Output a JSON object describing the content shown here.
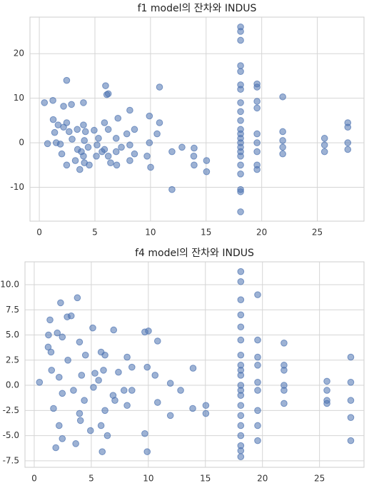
{
  "chart_data": [
    {
      "type": "scatter",
      "title": "f1 model의 잔차와 INDUS",
      "color": "#4c72b0",
      "grid": true,
      "xlim": [
        -0.84,
        29.2
      ],
      "xticks": [
        0,
        5,
        10,
        15,
        20,
        25
      ],
      "ylim": [
        -17.6,
        28.2
      ],
      "yticks": [
        -10,
        0,
        10,
        20
      ],
      "x": [
        0.46,
        0.74,
        1.22,
        1.25,
        1.38,
        1.52,
        1.69,
        1.89,
        2.02,
        2.18,
        2.18,
        2.46,
        2.46,
        2.46,
        2.68,
        2.89,
        2.95,
        3.24,
        3.41,
        3.44,
        3.64,
        3.78,
        3.97,
        3.97,
        3.97,
        4.05,
        4.05,
        4.15,
        4.39,
        4.49,
        4.93,
        5.13,
        5.19,
        5.32,
        5.64,
        5.86,
        5.86,
        5.96,
        6.07,
        6.2,
        6.2,
        6.2,
        6.41,
        6.91,
        6.91,
        6.96,
        7.07,
        7.38,
        7.87,
        8.14,
        8.14,
        8.14,
        8.56,
        8.56,
        9.69,
        9.9,
        9.9,
        10.01,
        10.59,
        10.81,
        10.81,
        11.93,
        11.93,
        12.83,
        13.89,
        13.92,
        13.92,
        15.04,
        15.04,
        18.1,
        18.1,
        18.1,
        18.1,
        18.1,
        18.1,
        18.1,
        18.1,
        18.1,
        18.1,
        18.1,
        18.1,
        18.1,
        18.1,
        18.1,
        18.1,
        18.1,
        18.1,
        18.1,
        18.1,
        18.1,
        18.1,
        19.58,
        19.58,
        19.58,
        19.58,
        19.58,
        19.58,
        19.58,
        19.58,
        19.58,
        21.89,
        21.89,
        21.89,
        21.89,
        21.89,
        25.65,
        25.65,
        25.65,
        27.74,
        27.74,
        27.74,
        27.74
      ],
      "y": [
        9,
        -0.2,
        9.5,
        5.2,
        2.3,
        0,
        4,
        -0.3,
        -2.5,
        3.5,
        8.2,
        14,
        4.5,
        -5,
        2.5,
        8.6,
        0.8,
        -4,
        3,
        -1.5,
        -6,
        -2,
        4,
        9,
        -3,
        -4.5,
        0.5,
        2.5,
        -1,
        -5,
        2.8,
        -3,
        -0.5,
        1,
        -2,
        4.5,
        -1.5,
        12.8,
        10.8,
        11,
        3,
        -3,
        -4.5,
        -2,
        1,
        -5,
        5.5,
        -1,
        2,
        7.3,
        -0.5,
        -4,
        3,
        -2.5,
        -3,
        6,
        0,
        -5.5,
        2,
        12.5,
        4.5,
        -10.5,
        -2,
        -1,
        -3,
        -5,
        -1.2,
        -4,
        -6.5,
        26,
        25,
        23,
        17.3,
        16,
        13,
        12,
        9,
        7,
        5,
        3,
        1,
        -1,
        -3,
        -5,
        -7,
        -10.5,
        -11,
        -15.5,
        0,
        2,
        -2,
        13.2,
        12.5,
        9.3,
        7.8,
        2,
        0,
        -2,
        -5,
        -6,
        10.3,
        2.5,
        0.5,
        -1,
        -2.5,
        1,
        -0.5,
        -2,
        4.5,
        3.5,
        0,
        -1.5
      ]
    },
    {
      "type": "scatter",
      "title": "f4 model의 잔차와 INDUS",
      "color": "#4c72b0",
      "grid": true,
      "xlim": [
        -0.81,
        28.9
      ],
      "xticks": [
        0,
        5,
        10,
        15,
        20,
        25
      ],
      "ylim": [
        -8.15,
        12.27
      ],
      "yticks": [
        -7.5,
        {
          "value": -5,
          "label": "-5.0"
        },
        -2.5,
        {
          "value": 0,
          "label": "0.0"
        },
        2.5,
        {
          "value": 5,
          "label": "5.0"
        },
        7.5,
        {
          "value": 10,
          "label": "10.0"
        }
      ],
      "x": [
        0.46,
        1.22,
        1.25,
        1.38,
        1.47,
        1.52,
        1.69,
        1.89,
        2.02,
        2.18,
        2.18,
        2.31,
        2.46,
        2.46,
        2.46,
        2.89,
        2.95,
        3.24,
        3.44,
        3.64,
        3.78,
        3.97,
        3.97,
        4.05,
        4.15,
        4.39,
        4.49,
        4.93,
        5.13,
        5.19,
        5.32,
        5.64,
        5.86,
        5.86,
        5.96,
        6.07,
        6.2,
        6.2,
        6.41,
        6.91,
        6.96,
        7.07,
        7.38,
        7.87,
        8.14,
        8.14,
        8.56,
        8.56,
        9.69,
        9.69,
        9.9,
        9.9,
        10.01,
        10.59,
        10.81,
        10.81,
        11.93,
        11.93,
        12.83,
        13.89,
        13.92,
        15.04,
        15.04,
        18.1,
        18.1,
        18.1,
        18.1,
        18.1,
        18.1,
        18.1,
        18.1,
        18.1,
        18.1,
        18.1,
        18.1,
        18.1,
        18.1,
        18.1,
        18.1,
        18.1,
        18.1,
        18.1,
        18.1,
        19.58,
        19.58,
        19.58,
        19.58,
        19.58,
        19.58,
        19.58,
        19.58,
        19.58,
        21.89,
        21.89,
        21.89,
        21.89,
        21.89,
        21.89,
        25.65,
        25.65,
        25.65,
        25.65,
        27.74,
        27.74,
        27.74,
        27.74,
        27.74
      ],
      "y": [
        0.3,
        3.8,
        5,
        6.5,
        3.3,
        1.5,
        -2.3,
        -6.2,
        5.2,
        -4,
        0.8,
        8.2,
        -5.3,
        4.8,
        -0.8,
        6.8,
        2.5,
        6.9,
        -0.5,
        -5.8,
        8.7,
        4.3,
        -2.8,
        -3.5,
        1,
        -1.5,
        3,
        -4.5,
        5.7,
        -0.2,
        1.2,
        0.5,
        -4,
        3.3,
        -6.6,
        1.5,
        3,
        -2.5,
        -5,
        -1,
        5.5,
        -1.5,
        1.3,
        -0.5,
        2.8,
        -2,
        1.8,
        -0.5,
        5.3,
        -4.8,
        1.8,
        -6.6,
        5.4,
        1,
        4.4,
        -1.7,
        -3,
        0.2,
        -0.5,
        -2.3,
        1.7,
        -2,
        -2.8,
        11.3,
        10.3,
        8.5,
        7,
        5.8,
        4.5,
        3,
        2,
        1,
        0,
        -1,
        -2,
        -3,
        -4,
        -5,
        -6,
        -7.1,
        -6.5,
        -0.5,
        1.5,
        9,
        4.5,
        2.8,
        2,
        0.3,
        -0.5,
        -2.5,
        -4,
        -5.5,
        4.2,
        2,
        1.5,
        0,
        -0.5,
        -1.8,
        0.4,
        -0.5,
        -1.5,
        -1.8,
        2.8,
        0.3,
        -1.5,
        -3.2,
        -5.5
      ]
    }
  ]
}
